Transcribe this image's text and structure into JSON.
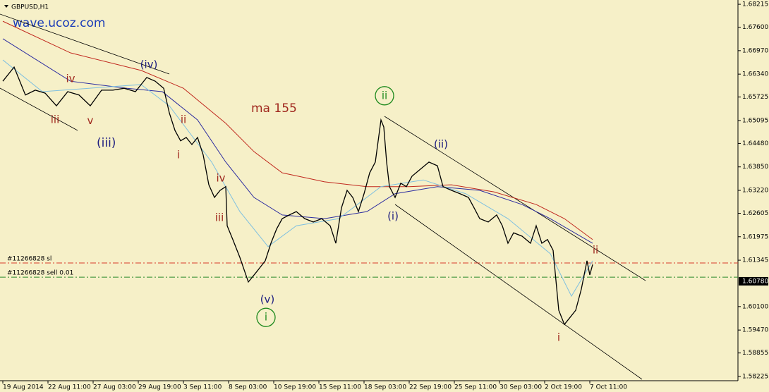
{
  "chart_data": {
    "type": "line",
    "symbol": "GBPUSD,H1",
    "watermark": "wave.ucoz.com",
    "background": "#f6f0c8",
    "xlim": [
      -4,
      1042
    ],
    "ylim": [
      1.5811,
      1.6833
    ],
    "xticks": [
      {
        "value": 0,
        "label": "19 Aug 2014"
      },
      {
        "value": 64,
        "label": "22 Aug 11:00"
      },
      {
        "value": 128,
        "label": "27 Aug 03:00"
      },
      {
        "value": 192,
        "label": "29 Aug 19:00"
      },
      {
        "value": 256,
        "label": "3 Sep 11:00"
      },
      {
        "value": 320,
        "label": "8 Sep 03:00"
      },
      {
        "value": 384,
        "label": "10 Sep 19:00"
      },
      {
        "value": 448,
        "label": "15 Sep 11:00"
      },
      {
        "value": 512,
        "label": "18 Sep 03:00"
      },
      {
        "value": 576,
        "label": "22 Sep 19:00"
      },
      {
        "value": 640,
        "label": "25 Sep 11:00"
      },
      {
        "value": 704,
        "label": "30 Sep 03:00"
      },
      {
        "value": 768,
        "label": "2 Oct 19:00"
      },
      {
        "value": 832,
        "label": "7 Oct 11:00"
      }
    ],
    "yticks": [
      1.68215,
      {
        "value": 1.676,
        "label": "1.67600"
      },
      {
        "value": 1.6697,
        "label": "1.66970"
      },
      {
        "value": 1.6634,
        "label": "1.66340"
      },
      1.65725,
      1.65095,
      {
        "value": 1.6448,
        "label": "1.64480"
      },
      {
        "value": 1.6385,
        "label": "1.63850"
      },
      {
        "value": 1.6322,
        "label": "1.63220"
      },
      1.62605,
      1.61975,
      1.61345,
      {
        "value": 1.601,
        "label": "1.60100"
      },
      {
        "value": 1.5947,
        "label": "1.59470"
      },
      1.58855,
      1.58225
    ],
    "current_price": {
      "value": 1.6078,
      "label": "1.60780"
    },
    "series": [
      {
        "color": "#000000",
        "x": [
          0,
          16,
          32,
          46,
          60,
          76,
          92,
          108,
          124,
          140,
          156,
          172,
          188,
          204,
          216,
          228,
          236,
          244,
          252,
          260,
          268,
          276,
          284,
          292,
          300,
          308,
          316,
          318,
          326,
          336,
          348,
          360,
          372,
          380,
          388,
          396,
          406,
          416,
          428,
          440,
          452,
          464,
          472,
          480,
          488,
          496,
          504,
          512,
          520,
          528,
          536,
          540,
          544,
          548,
          556,
          564,
          572,
          580,
          592,
          604,
          616,
          624,
          636,
          648,
          660,
          668,
          676,
          688,
          700,
          708,
          716,
          724,
          736,
          748,
          756,
          764,
          772,
          780,
          788,
          796,
          804,
          812,
          820,
          828,
          832,
          836
        ],
        "values": [
          1.6615,
          1.6653,
          1.6578,
          1.6591,
          1.6583,
          1.6549,
          1.6587,
          1.6578,
          1.6549,
          1.6591,
          1.6591,
          1.6596,
          1.6587,
          1.6625,
          1.6615,
          1.6596,
          1.653,
          1.6483,
          1.6455,
          1.6464,
          1.6445,
          1.6464,
          1.6417,
          1.6337,
          1.6303,
          1.6322,
          1.6332,
          1.6227,
          1.619,
          1.6142,
          1.6076,
          1.6104,
          1.6133,
          1.618,
          1.6218,
          1.6246,
          1.6256,
          1.6265,
          1.6246,
          1.6237,
          1.6246,
          1.6227,
          1.618,
          1.6275,
          1.6322,
          1.6303,
          1.6265,
          1.6313,
          1.6369,
          1.6398,
          1.6511,
          1.6492,
          1.6398,
          1.6332,
          1.6303,
          1.6341,
          1.6332,
          1.636,
          1.6379,
          1.6398,
          1.6388,
          1.6332,
          1.6322,
          1.6313,
          1.6303,
          1.6275,
          1.6246,
          1.6237,
          1.6256,
          1.6227,
          1.618,
          1.6208,
          1.6199,
          1.618,
          1.6227,
          1.618,
          1.619,
          1.6161,
          1.6,
          1.5962,
          1.5981,
          1.6,
          1.6057,
          1.6133,
          1.6095,
          1.6123
        ]
      },
      {
        "color": "#c0281e",
        "x": [
          0,
          96,
          196,
          256,
          316,
          356,
          396,
          456,
          516,
          576,
          636,
          696,
          756,
          796,
          836
        ],
        "values": [
          1.6776,
          1.6691,
          1.6644,
          1.6596,
          1.6502,
          1.6426,
          1.6369,
          1.6345,
          1.6332,
          1.6332,
          1.6337,
          1.6318,
          1.6284,
          1.6246,
          1.619
        ]
      },
      {
        "color": "#2c2ca0",
        "x": [
          0,
          96,
          176,
          226,
          276,
          316,
          356,
          396,
          456,
          516,
          556,
          616,
          676,
          736,
          776,
          836
        ],
        "values": [
          1.6729,
          1.6615,
          1.6596,
          1.6587,
          1.6511,
          1.6398,
          1.6303,
          1.6256,
          1.6246,
          1.6265,
          1.6313,
          1.6332,
          1.6322,
          1.6284,
          1.6246,
          1.618
        ]
      },
      {
        "color": "#7fc0e0",
        "x": [
          0,
          56,
          196,
          236,
          296,
          336,
          376,
          416,
          476,
          536,
          596,
          656,
          716,
          776,
          806,
          836
        ],
        "values": [
          1.6672,
          1.6587,
          1.6606,
          1.6549,
          1.6398,
          1.6265,
          1.6171,
          1.6227,
          1.6246,
          1.6332,
          1.635,
          1.6313,
          1.6246,
          1.6152,
          1.6038,
          1.6133
        ]
      }
    ],
    "levels": [
      {
        "label": "#11266828 sl",
        "value": 1.6127,
        "color": "#d83a2a"
      },
      {
        "label": "#11266828 sell 0.01",
        "value": 1.6089,
        "color": "#2a8a2a"
      }
    ],
    "annotations": [
      {
        "text": "iv",
        "x": 96,
        "y": 1.6621,
        "color": "#a0281e"
      },
      {
        "text": "iii",
        "x": 74,
        "y": 1.6511,
        "color": "#a0281e"
      },
      {
        "text": "v",
        "x": 124,
        "y": 1.6508,
        "color": "#a0281e"
      },
      {
        "text": "(iii)",
        "x": 133,
        "y": 1.6449,
        "color": "#1e1e80"
      },
      {
        "text": "(iv)",
        "x": 207,
        "y": 1.6659,
        "color": "#1e1e80"
      },
      {
        "text": "ii",
        "x": 256,
        "y": 1.6511,
        "color": "#a0281e"
      },
      {
        "text": "i",
        "x": 249,
        "y": 1.6417,
        "color": "#a0281e"
      },
      {
        "text": "iv",
        "x": 309,
        "y": 1.6354,
        "color": "#a0281e"
      },
      {
        "text": "iii",
        "x": 307,
        "y": 1.6248,
        "color": "#a0281e"
      },
      {
        "text": "ma 155",
        "x": 352,
        "y": 1.6542,
        "color": "#a0281e"
      },
      {
        "text": "(v)",
        "x": 375,
        "y": 1.6029,
        "color": "#1e1e80"
      },
      {
        "text": "i",
        "x": 373,
        "y": 1.5981,
        "color": "#1e8a1e",
        "circled": true
      },
      {
        "text": "ii",
        "x": 541,
        "y": 1.6576,
        "color": "#1e8a1e",
        "circled": true
      },
      {
        "text": "(ii)",
        "x": 621,
        "y": 1.6445,
        "color": "#1e1e80"
      },
      {
        "text": "(i)",
        "x": 553,
        "y": 1.6252,
        "color": "#1e1e80"
      },
      {
        "text": "ii",
        "x": 840,
        "y": 1.6161,
        "color": "#a0281e"
      },
      {
        "text": "i",
        "x": 788,
        "y": 1.5926,
        "color": "#a0281e"
      }
    ]
  }
}
